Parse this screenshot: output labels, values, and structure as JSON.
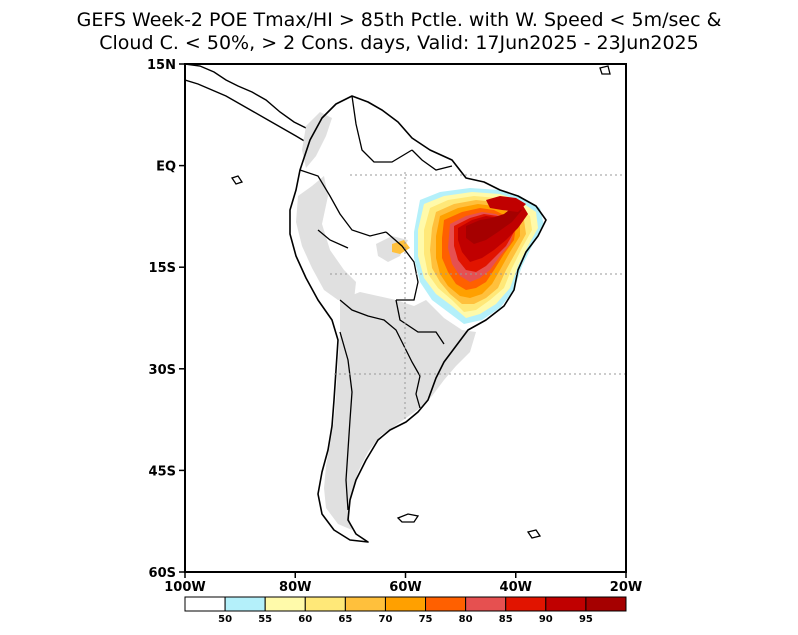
{
  "title": {
    "line1": "GEFS Week-2 POE Tmax/HI > 85th Pctle. with W. Speed < 5m/sec &",
    "line2": "Cloud C. < 50%, > 2 Cons. days, Valid: 17Jun2025 - 23Jun2025"
  },
  "map": {
    "region": "South America",
    "projection": "lat-lon",
    "lon_range": [
      -100,
      -20
    ],
    "lat_range": [
      -60,
      15
    ],
    "land_color": "#ffffff",
    "masked_color": "#e0e0e0",
    "coastline_color": "#000000",
    "gridlines": "dotted, 20W/15 deg"
  },
  "axes": {
    "y_ticks": [
      {
        "lat": 15,
        "label": "15N"
      },
      {
        "lat": 0,
        "label": "EQ"
      },
      {
        "lat": -15,
        "label": "15S"
      },
      {
        "lat": -30,
        "label": "30S"
      },
      {
        "lat": -45,
        "label": "45S"
      },
      {
        "lat": -60,
        "label": "60S"
      }
    ],
    "x_ticks": [
      {
        "lon": -100,
        "label": "100W"
      },
      {
        "lon": -80,
        "label": "80W"
      },
      {
        "lon": -60,
        "label": "60W"
      },
      {
        "lon": -40,
        "label": "40W"
      },
      {
        "lon": -20,
        "label": "20W"
      }
    ]
  },
  "colorbar": {
    "colors": [
      "#ffffff",
      "#b4f0fa",
      "#fffaaa",
      "#ffe878",
      "#ffc03c",
      "#ffa000",
      "#ff6000",
      "#e65050",
      "#e11400",
      "#c00000",
      "#a50000"
    ],
    "labels": [
      "50",
      "55",
      "60",
      "65",
      "70",
      "75",
      "80",
      "85",
      "90",
      "95"
    ]
  },
  "probability_field": {
    "description_region": "central and northeastern Brazil",
    "max_class": "95"
  }
}
